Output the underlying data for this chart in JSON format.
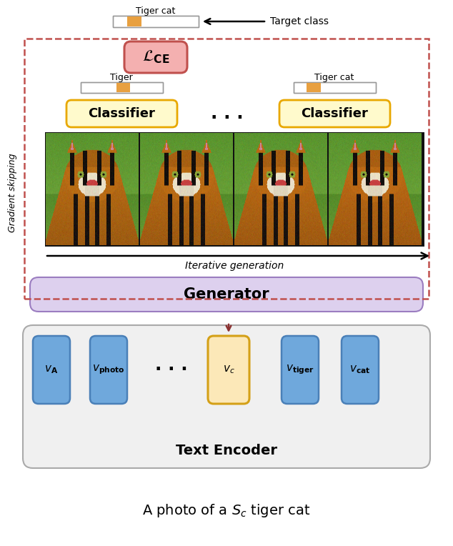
{
  "fig_width": 6.34,
  "fig_height": 7.64,
  "bg_color": "#ffffff",
  "loss_box_fill": "#f4b0b0",
  "loss_box_edge": "#c0504d",
  "classifier_fill": "#fffacc",
  "classifier_edge": "#e8a800",
  "generator_fill": "#ddd0ee",
  "generator_edge": "#9b7dc0",
  "generator_text": "Generator",
  "text_encoder_fill": "#f0f0f0",
  "text_encoder_edge": "#aaaaaa",
  "text_encoder_text": "Text Encoder",
  "token_blue_fill": "#6fa8dc",
  "token_blue_edge": "#4a80b8",
  "token_vc_fill": "#fce8b8",
  "token_vc_edge": "#d4a017",
  "dashed_color": "#c0504d",
  "bar_orange": "#e8a040",
  "arrow_color_down": "#8b3030",
  "iterative_gen_text": "Iterative generation",
  "gradient_skip_text": "Gradient skipping"
}
